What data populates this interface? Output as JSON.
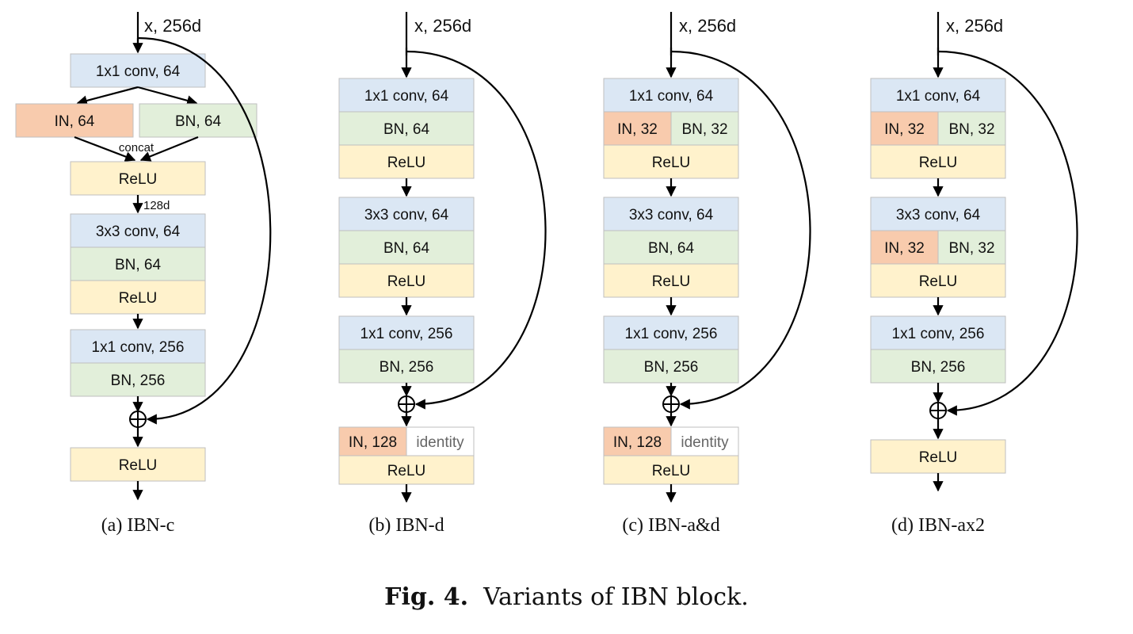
{
  "colors": {
    "conv": "#dbe7f4",
    "bn": "#e2efda",
    "relu": "#fff2cc",
    "in": "#f8cbad",
    "identity": "#ffffff",
    "border": "#bfbfbf",
    "line": "#000000"
  },
  "caption": {
    "label": "Fig. 4.",
    "text": "Variants of IBN block."
  },
  "panels": [
    {
      "id": "ibn-c",
      "caption": "(a) IBN-c",
      "input": "x, 256d",
      "concat_label": "concat",
      "dim_label": "128d",
      "labels": {
        "conv1": "1x1 conv, 64",
        "in": "IN, 64",
        "bn": "BN, 64",
        "relu1": "ReLU",
        "conv2": "3x3 conv, 64",
        "bn2": "BN, 64",
        "relu2": "ReLU",
        "conv3": "1x1 conv, 256",
        "bn3": "BN, 256",
        "relu_out": "ReLU"
      }
    },
    {
      "id": "ibn-d",
      "caption": "(b) IBN-d",
      "input": "x, 256d",
      "labels": {
        "conv1": "1x1 conv, 64",
        "bn1": "BN, 64",
        "relu1": "ReLU",
        "conv2": "3x3 conv, 64",
        "bn2": "BN, 64",
        "relu2": "ReLU",
        "conv3": "1x1 conv, 256",
        "bn3": "BN, 256",
        "in_out": "IN, 128",
        "identity": "identity",
        "relu_out": "ReLU"
      }
    },
    {
      "id": "ibn-a-d",
      "caption": "(c) IBN-a&d",
      "input": "x, 256d",
      "labels": {
        "conv1": "1x1 conv, 64",
        "in1": "IN, 32",
        "bn1": "BN, 32",
        "relu1": "ReLU",
        "conv2": "3x3 conv, 64",
        "bn2": "BN, 64",
        "relu2": "ReLU",
        "conv3": "1x1 conv, 256",
        "bn3": "BN, 256",
        "in_out": "IN, 128",
        "identity": "identity",
        "relu_out": "ReLU"
      }
    },
    {
      "id": "ibn-ax2",
      "caption": "(d) IBN-ax2",
      "input": "x, 256d",
      "labels": {
        "conv1": "1x1 conv, 64",
        "in1": "IN, 32",
        "bn1": "BN, 32",
        "relu1": "ReLU",
        "conv2": "3x3 conv, 64",
        "in2": "IN, 32",
        "bn2": "BN, 32",
        "relu2": "ReLU",
        "conv3": "1x1 conv, 256",
        "bn3": "BN, 256",
        "relu_out": "ReLU"
      }
    }
  ]
}
